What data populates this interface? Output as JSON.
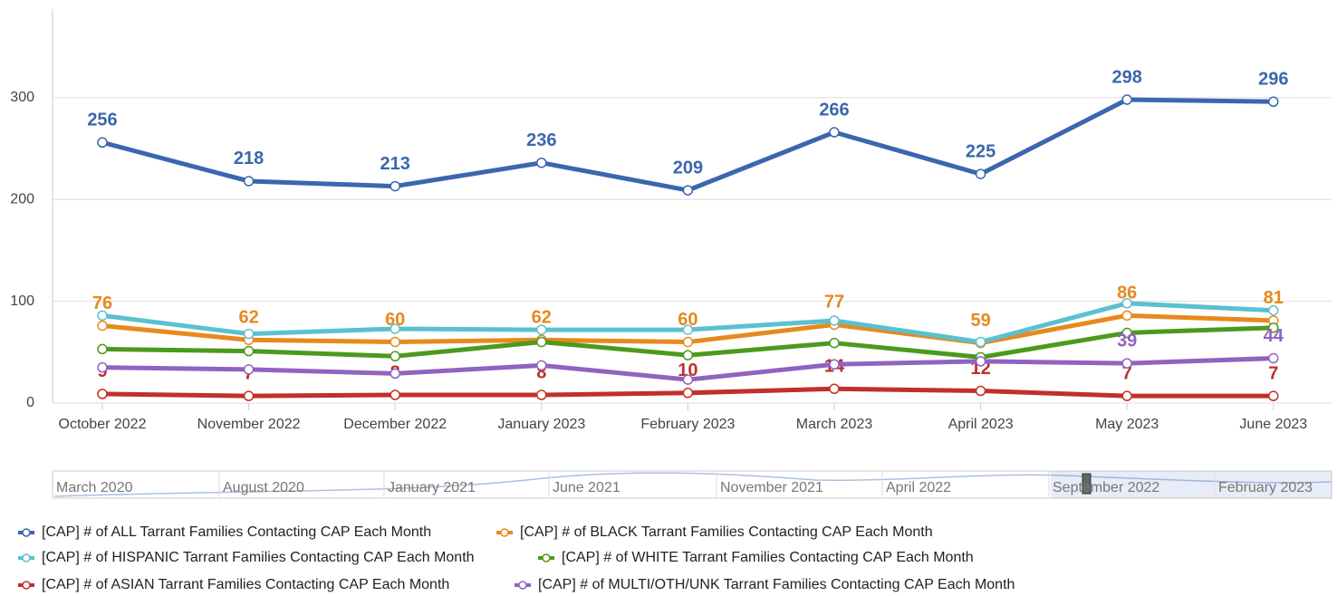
{
  "chart_data": {
    "type": "line",
    "categories": [
      "October 2022",
      "November 2022",
      "December 2022",
      "January 2023",
      "February 2023",
      "March 2023",
      "April 2023",
      "May 2023",
      "June 2023"
    ],
    "ylim": [
      0,
      387
    ],
    "yticks": [
      0,
      100,
      200,
      300
    ],
    "grid": true,
    "series": [
      {
        "name": "[CAP] # of ALL Tarrant Families Contacting CAP Each Month",
        "color": "#3a67ae",
        "values": [
          256,
          218,
          213,
          236,
          209,
          266,
          225,
          298,
          296
        ],
        "labeled_points": [
          0,
          1,
          2,
          3,
          4,
          5,
          6,
          7,
          8
        ]
      },
      {
        "name": "[CAP] # of BLACK Tarrant Families Contacting CAP Each Month",
        "color": "#e8891e",
        "values": [
          76,
          62,
          60,
          62,
          60,
          77,
          59,
          86,
          81
        ],
        "labeled_points": [
          0,
          1,
          2,
          3,
          4,
          5,
          6,
          7,
          8
        ]
      },
      {
        "name": "[CAP] # of HISPANIC Tarrant Families Contacting CAP Each Month",
        "color": "#5bc0cf",
        "values": [
          86,
          68,
          73,
          72,
          72,
          81,
          60,
          98,
          91
        ],
        "labeled_points": []
      },
      {
        "name": "[CAP] # of WHITE Tarrant Families Contacting CAP Each Month",
        "color": "#4c9a1c",
        "values": [
          53,
          51,
          46,
          60,
          47,
          59,
          45,
          69,
          74
        ],
        "labeled_points": []
      },
      {
        "name": "[CAP] # of ASIAN Tarrant Families Contacting CAP Each Month",
        "color": "#c0302a",
        "values": [
          9,
          7,
          8,
          8,
          10,
          14,
          12,
          7,
          7
        ],
        "labeled_points": [
          0,
          1,
          2,
          3,
          4,
          5,
          6,
          7,
          8
        ]
      },
      {
        "name": "[CAP] # of MULTI/OTH/UNK Tarrant Families Contacting CAP Each Month",
        "color": "#8f63c2",
        "values": [
          35,
          33,
          29,
          37,
          23,
          38,
          41,
          39,
          44
        ],
        "labeled_points": [
          7,
          8
        ]
      }
    ],
    "navigator_labels": [
      "March 2020",
      "August 2020",
      "January 2021",
      "June 2021",
      "November 2021",
      "April 2022",
      "September 2022",
      "February 2023"
    ]
  }
}
